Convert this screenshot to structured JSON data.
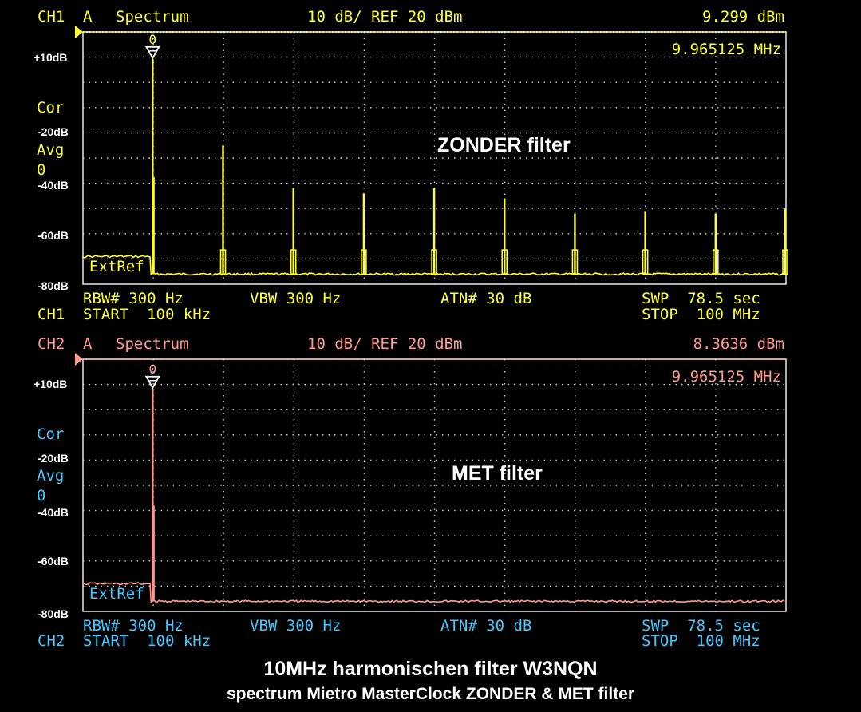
{
  "panels": [
    {
      "header": {
        "ch": "CH1",
        "mode": "A",
        "label": "Spectrum",
        "scale": "10 dB/ REF 20 dBm",
        "level": "9.299 dBm"
      },
      "marker_freq": "9.965125 MHz",
      "marker_id": "0",
      "ylabels": [
        "+10dB",
        "-20dB",
        "-40dB",
        "-60dB",
        "-80dB"
      ],
      "side": {
        "cor": "Cor",
        "avg": "Avg",
        "avg_n": "0",
        "extref": "ExtRef"
      },
      "annotation": "ZONDER filter",
      "footer": {
        "rbw": "RBW# 300 Hz",
        "vbw": "VBW 300 Hz",
        "atn": "ATN# 30 dB",
        "swp": "SWP  78.5 sec",
        "ch": "CH1",
        "start": "START  100 kHz",
        "stop": "STOP  100 MHz"
      },
      "color": "#ffff33"
    },
    {
      "header": {
        "ch": "CH2",
        "mode": "A",
        "label": "Spectrum",
        "scale": "10 dB/ REF 20 dBm",
        "level": "8.3636 dBm"
      },
      "marker_freq": "9.965125 MHz",
      "marker_id": "0",
      "ylabels": [
        "+10dB",
        "-20dB",
        "-40dB",
        "-60dB",
        "-80dB"
      ],
      "side": {
        "cor": "Cor",
        "avg": "Avg",
        "avg_n": "0",
        "extref": "ExtRef"
      },
      "annotation": "MET filter",
      "footer": {
        "rbw": "RBW# 300 Hz",
        "vbw": "VBW 300 Hz",
        "atn": "ATN# 30 dB",
        "swp": "SWP  78.5 sec",
        "ch": "CH2",
        "start": "START  100 kHz",
        "stop": "STOP  100 MHz"
      },
      "color": "#ff9a8c"
    }
  ],
  "caption": {
    "title": "10MHz harmonischen filter W3NQN",
    "subtitle": "spectrum Mietro MasterClock ZONDER & MET filter"
  },
  "chart_data": [
    {
      "type": "line",
      "x_range_mhz": [
        0.1,
        100
      ],
      "y_range_dbm": [
        20,
        -80
      ],
      "grid": true,
      "series": [
        {
          "peaks_mhz": [
            10,
            20,
            30,
            40,
            50,
            60,
            70,
            80,
            90,
            100
          ],
          "peaks_dbm": [
            9.3,
            -25,
            -42,
            -44,
            -42,
            -46,
            -52,
            -51,
            -52,
            -50
          ],
          "noise_floor_dbm": -76
        }
      ]
    },
    {
      "type": "line",
      "x_range_mhz": [
        0.1,
        100
      ],
      "y_range_dbm": [
        20,
        -80
      ],
      "grid": true,
      "series": [
        {
          "peaks_mhz": [
            10
          ],
          "peaks_dbm": [
            8.36
          ],
          "noise_floor_dbm": -76
        }
      ]
    }
  ]
}
